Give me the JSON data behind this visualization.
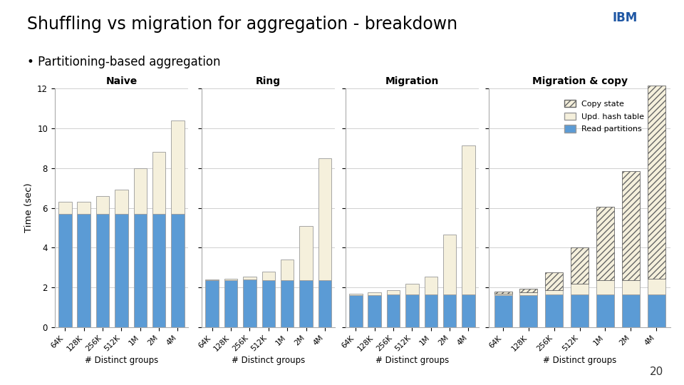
{
  "title": "Shuffling vs migration for aggregation - breakdown",
  "subtitle": "• Partitioning-based aggregation",
  "categories": [
    "64K",
    "128K",
    "256K",
    "512K",
    "1M",
    "2M",
    "4M"
  ],
  "ylabel": "Time (sec)",
  "xlabel": "# Distinct groups",
  "ylim": [
    0,
    12
  ],
  "yticks": [
    0,
    2,
    4,
    6,
    8,
    10,
    12
  ],
  "subplot_titles": [
    "Naive",
    "Ring",
    "Migration",
    "Migration & copy"
  ],
  "naive": {
    "read_partitions": [
      5.7,
      5.7,
      5.7,
      5.7,
      5.7,
      5.7,
      5.7
    ],
    "upd_hash_table": [
      0.6,
      0.6,
      0.9,
      1.2,
      2.3,
      3.1,
      4.7
    ],
    "copy_state": [
      0.0,
      0.0,
      0.0,
      0.0,
      0.0,
      0.0,
      0.0
    ]
  },
  "ring": {
    "read_partitions": [
      2.35,
      2.38,
      2.4,
      2.35,
      2.35,
      2.35,
      2.35
    ],
    "upd_hash_table": [
      0.05,
      0.05,
      0.15,
      0.45,
      1.05,
      2.75,
      6.15
    ],
    "copy_state": [
      0.0,
      0.0,
      0.0,
      0.0,
      0.0,
      0.0,
      0.0
    ]
  },
  "migration": {
    "read_partitions": [
      1.6,
      1.6,
      1.65,
      1.65,
      1.65,
      1.65,
      1.65
    ],
    "upd_hash_table": [
      0.1,
      0.15,
      0.2,
      0.55,
      0.9,
      3.0,
      7.5
    ],
    "copy_state": [
      0.0,
      0.0,
      0.0,
      0.0,
      0.0,
      0.0,
      0.0
    ]
  },
  "migration_copy": {
    "read_partitions": [
      1.6,
      1.6,
      1.65,
      1.65,
      1.65,
      1.65,
      1.65
    ],
    "upd_hash_table": [
      0.1,
      0.15,
      0.2,
      0.55,
      0.7,
      0.7,
      0.8
    ],
    "copy_state": [
      0.1,
      0.2,
      0.9,
      1.8,
      3.7,
      5.5,
      9.7
    ]
  },
  "color_read": "#5B9BD5",
  "color_upd": "#F5F0DC",
  "color_copy_fill": "#F5F0DC",
  "hatch_copy": "////",
  "bar_edge_color": "#999999",
  "bar_width": 0.7,
  "page_number": "20"
}
